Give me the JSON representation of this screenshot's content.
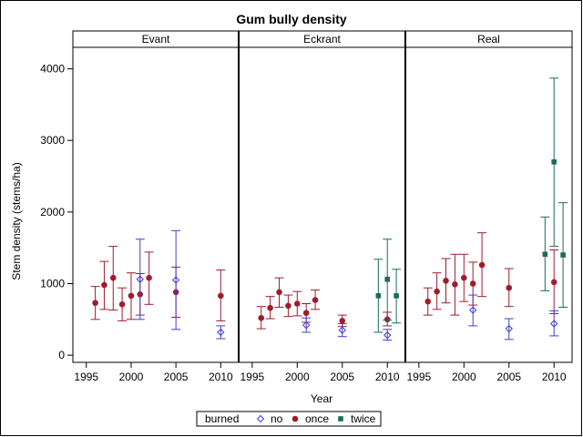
{
  "chart_data": {
    "type": "scatter",
    "title": "Gum bully density",
    "xlabel": "Year",
    "ylabel": "Stem density (stems/ha)",
    "ylim": [
      -100,
      4300
    ],
    "xlim": [
      1993.5,
      2012
    ],
    "xticks": [
      1995,
      2000,
      2005,
      2010
    ],
    "yticks": [
      0,
      1000,
      2000,
      3000,
      4000
    ],
    "panels": [
      "Evant",
      "Eckrant",
      "Real"
    ],
    "legend": {
      "title": "burned",
      "placement": "bottom",
      "entries": [
        {
          "key": "no",
          "label": "no"
        },
        {
          "key": "once",
          "label": "once"
        },
        {
          "key": "twice",
          "label": "twice"
        }
      ]
    },
    "colors": {
      "no": "#3f3fd8",
      "once": "#a01c2c",
      "twice": "#1b6b5c"
    },
    "series": [
      {
        "panel": 0,
        "burned": "once",
        "points": [
          {
            "x": 1996,
            "y": 730,
            "lo": 500,
            "hi": 960
          },
          {
            "x": 1997,
            "y": 980,
            "lo": 640,
            "hi": 1310
          },
          {
            "x": 1998,
            "y": 1080,
            "lo": 630,
            "hi": 1520
          },
          {
            "x": 1999,
            "y": 710,
            "lo": 480,
            "hi": 940
          },
          {
            "x": 2000,
            "y": 830,
            "lo": 500,
            "hi": 1150
          },
          {
            "x": 2001,
            "y": 850,
            "lo": 560,
            "hi": 1140
          },
          {
            "x": 2002,
            "y": 1080,
            "lo": 710,
            "hi": 1440
          },
          {
            "x": 2005,
            "y": 880,
            "lo": 530,
            "hi": 1230
          },
          {
            "x": 2010,
            "y": 830,
            "lo": 480,
            "hi": 1190
          }
        ]
      },
      {
        "panel": 0,
        "burned": "no",
        "points": [
          {
            "x": 2001,
            "y": 1060,
            "lo": 500,
            "hi": 1620
          },
          {
            "x": 2005,
            "y": 1050,
            "lo": 360,
            "hi": 1740
          },
          {
            "x": 2010,
            "y": 320,
            "lo": 230,
            "hi": 410
          }
        ]
      },
      {
        "panel": 1,
        "burned": "once",
        "points": [
          {
            "x": 1996,
            "y": 520,
            "lo": 370,
            "hi": 680
          },
          {
            "x": 1997,
            "y": 660,
            "lo": 510,
            "hi": 820
          },
          {
            "x": 1998,
            "y": 880,
            "lo": 670,
            "hi": 1080
          },
          {
            "x": 1999,
            "y": 690,
            "lo": 540,
            "hi": 840
          },
          {
            "x": 2000,
            "y": 720,
            "lo": 550,
            "hi": 890
          },
          {
            "x": 2001,
            "y": 590,
            "lo": 460,
            "hi": 720
          },
          {
            "x": 2002,
            "y": 770,
            "lo": 640,
            "hi": 910
          },
          {
            "x": 2005,
            "y": 480,
            "lo": 400,
            "hi": 560
          },
          {
            "x": 2010,
            "y": 500,
            "lo": 410,
            "hi": 600
          }
        ]
      },
      {
        "panel": 1,
        "burned": "no",
        "points": [
          {
            "x": 2001,
            "y": 420,
            "lo": 320,
            "hi": 520
          },
          {
            "x": 2005,
            "y": 350,
            "lo": 260,
            "hi": 440
          },
          {
            "x": 2010,
            "y": 280,
            "lo": 210,
            "hi": 360
          }
        ]
      },
      {
        "panel": 1,
        "burned": "twice",
        "points": [
          {
            "x": 2009,
            "y": 830,
            "lo": 320,
            "hi": 1340
          },
          {
            "x": 2010,
            "y": 1060,
            "lo": 490,
            "hi": 1620
          },
          {
            "x": 2011,
            "y": 830,
            "lo": 450,
            "hi": 1200
          }
        ]
      },
      {
        "panel": 2,
        "burned": "once",
        "points": [
          {
            "x": 1996,
            "y": 750,
            "lo": 560,
            "hi": 940
          },
          {
            "x": 1997,
            "y": 890,
            "lo": 640,
            "hi": 1150
          },
          {
            "x": 1998,
            "y": 1040,
            "lo": 730,
            "hi": 1350
          },
          {
            "x": 1999,
            "y": 990,
            "lo": 560,
            "hi": 1410
          },
          {
            "x": 2000,
            "y": 1080,
            "lo": 750,
            "hi": 1410
          },
          {
            "x": 2001,
            "y": 1000,
            "lo": 700,
            "hi": 1300
          },
          {
            "x": 2002,
            "y": 1260,
            "lo": 820,
            "hi": 1710
          },
          {
            "x": 2005,
            "y": 940,
            "lo": 680,
            "hi": 1210
          },
          {
            "x": 2010,
            "y": 1020,
            "lo": 580,
            "hi": 1470
          }
        ]
      },
      {
        "panel": 2,
        "burned": "no",
        "points": [
          {
            "x": 2001,
            "y": 630,
            "lo": 410,
            "hi": 840
          },
          {
            "x": 2005,
            "y": 370,
            "lo": 220,
            "hi": 510
          },
          {
            "x": 2010,
            "y": 440,
            "lo": 270,
            "hi": 620
          }
        ]
      },
      {
        "panel": 2,
        "burned": "twice",
        "points": [
          {
            "x": 2009,
            "y": 1410,
            "lo": 900,
            "hi": 1930
          },
          {
            "x": 2010,
            "y": 2700,
            "lo": 1520,
            "hi": 3870
          },
          {
            "x": 2011,
            "y": 1400,
            "lo": 670,
            "hi": 2130
          }
        ]
      }
    ]
  }
}
